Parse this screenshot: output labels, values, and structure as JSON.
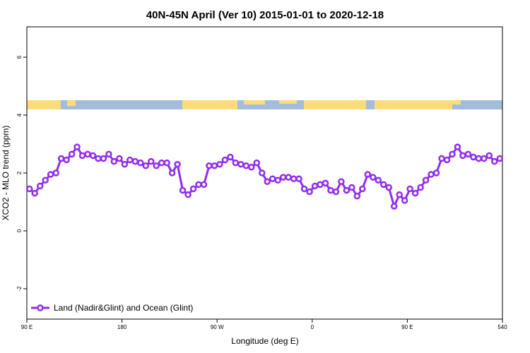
{
  "chart_data": {
    "type": "line",
    "title": "40N-45N April (Ver 10)   2015-01-01 to 2020-12-18",
    "x_label": "Longitude (deg E)",
    "y_label": "XCO2 - MLO trend (ppm)",
    "x": [
      92.5,
      97.5,
      102.5,
      107.5,
      112.5,
      117.5,
      122.5,
      127.5,
      132.5,
      137.5,
      142.5,
      147.5,
      152.5,
      157.5,
      162.5,
      167.5,
      172.5,
      177.5,
      182.5,
      187.5,
      192.5,
      197.5,
      202.5,
      207.5,
      212.5,
      217.5,
      222.5,
      227.5,
      232.5,
      237.5,
      242.5,
      247.5,
      252.5,
      257.5,
      262.5,
      267.5,
      272.5,
      277.5,
      282.5,
      287.5,
      292.5,
      297.5,
      302.5,
      307.5,
      312.5,
      317.5,
      322.5,
      327.5,
      332.5,
      337.5,
      342.5,
      347.5,
      352.5,
      357.5,
      362.5,
      367.5,
      372.5,
      377.5,
      382.5,
      387.5,
      392.5,
      397.5,
      402.5,
      407.5,
      412.5,
      417.5,
      422.5,
      427.5,
      432.5,
      437.5,
      442.5,
      447.5,
      452.5,
      457.5,
      462.5,
      467.5,
      472.5,
      477.5,
      482.5,
      487.5,
      492.5,
      497.5,
      502.5,
      507.5,
      512.5,
      517.5,
      522.5,
      527.5,
      532.5,
      537.5
    ],
    "series": [
      {
        "name": "Land (Nadir&Glint) and Ocean (Glint)",
        "color": "#912cee",
        "values": [
          1.45,
          1.3,
          1.55,
          1.75,
          1.95,
          2.0,
          2.5,
          2.45,
          2.65,
          2.9,
          2.6,
          2.65,
          2.6,
          2.5,
          2.5,
          2.65,
          2.4,
          2.5,
          2.3,
          2.45,
          2.4,
          2.35,
          2.25,
          2.4,
          2.25,
          2.35,
          2.35,
          2.0,
          2.3,
          1.4,
          1.25,
          1.45,
          1.6,
          1.6,
          2.25,
          2.25,
          2.3,
          2.45,
          2.55,
          2.35,
          2.3,
          2.25,
          2.2,
          2.35,
          2.0,
          1.7,
          1.8,
          1.75,
          1.85,
          1.85,
          1.8,
          1.8,
          1.45,
          1.35,
          1.55,
          1.6,
          1.65,
          1.4,
          1.35,
          1.7,
          1.4,
          1.5,
          1.2,
          1.45,
          1.95,
          1.85,
          1.75,
          1.6,
          1.5,
          0.85,
          1.25,
          1.05,
          1.45,
          1.3,
          1.5,
          1.75,
          1.95,
          2.0,
          2.5,
          2.45,
          2.65,
          2.9,
          2.6,
          2.65,
          2.55,
          2.5,
          2.5,
          2.6,
          2.4,
          2.5
        ]
      }
    ],
    "xlim": [
      90,
      540
    ],
    "xticks": [
      {
        "value": 90,
        "label": "90 E"
      },
      180,
      {
        "value": 270,
        "label": "90 W"
      },
      {
        "value": 360,
        "label": "0"
      },
      {
        "value": 450,
        "label": "90 E"
      },
      540
    ],
    "ylim": [
      -3.05,
      7.05
    ],
    "yticks": [
      -2,
      0,
      2,
      4,
      6
    ],
    "legend": "bottom-left"
  }
}
